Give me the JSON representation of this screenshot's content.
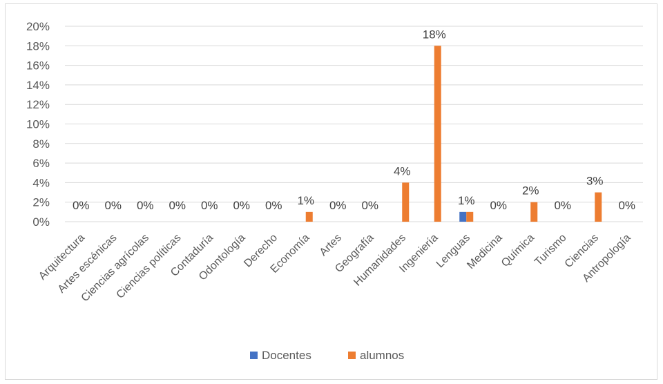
{
  "chart_data": {
    "type": "bar",
    "title": "",
    "xlabel": "",
    "ylabel": "",
    "ylim": [
      0,
      20
    ],
    "y_ticks": [
      "0%",
      "2%",
      "4%",
      "6%",
      "8%",
      "10%",
      "12%",
      "14%",
      "16%",
      "18%",
      "20%"
    ],
    "grid": true,
    "legend_position": "bottom",
    "categories": [
      "Arquitectura",
      "Artes escénicas",
      "Ciencias agrícolas",
      "Ciencias políticas",
      "Contaduría",
      "Odontología",
      "Derecho",
      "Economía",
      "Artes",
      "Geografía",
      "Humanidades",
      "Ingeniería",
      "Lenguas",
      "Medicina",
      "Química",
      "Turismo",
      "Ciencias",
      "Antropología"
    ],
    "series": [
      {
        "name": "Docentes",
        "color": "#4472c4",
        "values": [
          0,
          0,
          0,
          0,
          0,
          0,
          0,
          0,
          0,
          0,
          0,
          0,
          1,
          0,
          0,
          0,
          0,
          0
        ]
      },
      {
        "name": "alumnos",
        "color": "#ed7d31",
        "values": [
          0,
          0,
          0,
          0,
          0,
          0,
          0,
          1,
          0,
          0,
          4,
          18,
          1,
          0,
          2,
          0,
          3,
          0
        ]
      }
    ],
    "data_labels": [
      "0%",
      "0%",
      "0%",
      "0%",
      "0%",
      "0%",
      "0%",
      "1%",
      "0%",
      "0%",
      "4%",
      "18%",
      "1%",
      "0%",
      "2%",
      "0%",
      "3%",
      "0%"
    ]
  }
}
